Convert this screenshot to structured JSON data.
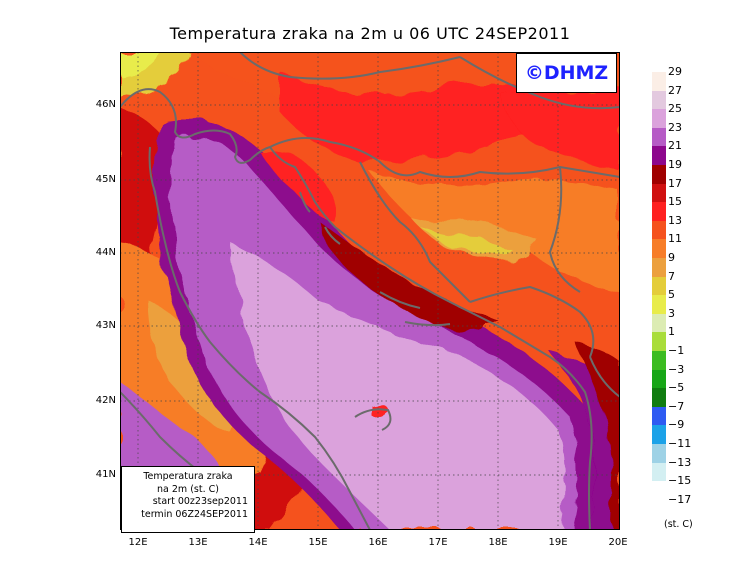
{
  "title": "Temperatura zraka na 2m u 06 UTC 24SEP2011",
  "logo": "©DHMZ",
  "info_box": {
    "line1": "Temperatura zraka",
    "line2": "na 2m (st. C)",
    "line3": "start 00z23sep2011",
    "line4": "termin 06Z24SEP2011"
  },
  "axes": {
    "lat_labels": [
      "46N",
      "45N",
      "44N",
      "43N",
      "42N",
      "41N"
    ],
    "lon_labels": [
      "12E",
      "13E",
      "14E",
      "15E",
      "16E",
      "17E",
      "18E",
      "19E",
      "20E"
    ]
  },
  "legend": {
    "unit": "(st. C)",
    "labels": [
      "29",
      "27",
      "25",
      "23",
      "21",
      "19",
      "17",
      "15",
      "13",
      "11",
      "9",
      "7",
      "5",
      "3",
      "1",
      "−1",
      "−3",
      "−5",
      "−7",
      "−9",
      "−11",
      "−13",
      "−15",
      "−17"
    ],
    "colors": [
      "#fbeee6",
      "#e3c9df",
      "#dba2dc",
      "#b65bc6",
      "#8d078d",
      "#a00000",
      "#d01010",
      "#ff2020",
      "#f5521d",
      "#f77d28",
      "#eca03e",
      "#e4cd3a",
      "#e8ec4b",
      "#dcecb3",
      "#a9dd3a",
      "#3cbc21",
      "#17a617",
      "#107d10",
      "#2e5bf2",
      "#1ca2e8",
      "#9ed2e6",
      "#d3eff2",
      "#ffffff"
    ]
  }
}
